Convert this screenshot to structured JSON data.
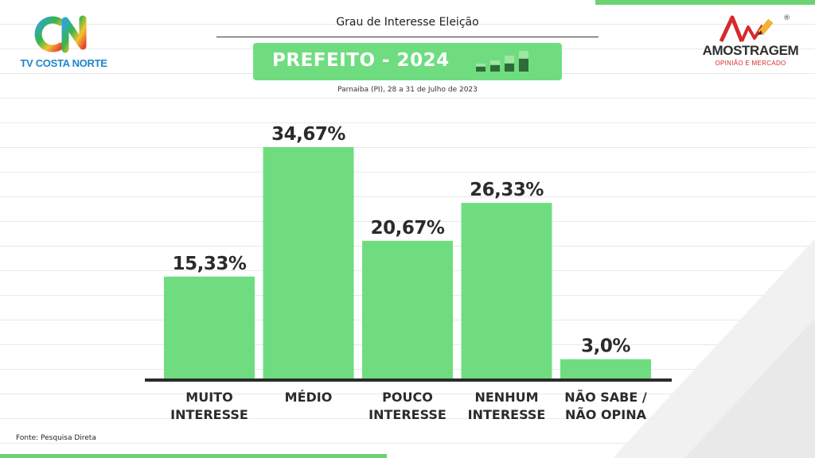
{
  "header": {
    "title": "Grau de Interesse Eleição",
    "banner": "PREFEITO - 2024",
    "subtitle": "Parnaiba (PI), 28 a 31 de Julho de 2023"
  },
  "logos": {
    "left_brand": "TV COSTA NORTE",
    "right_name": "AMOSTRAGEM",
    "right_tagline": "OPINIÃO E MERCADO",
    "right_mark": "®"
  },
  "footer": {
    "source": "Fonte: Pesquisa Direta"
  },
  "colors": {
    "bar": "#6fdd7f",
    "accent_green": "#6bd36f",
    "axis": "#2b2b2b",
    "label": "#2b2b2b"
  },
  "chart_data": {
    "type": "bar",
    "title": "Grau de Interesse Eleição",
    "categories": [
      [
        "MUITO",
        "INTERESSE"
      ],
      [
        "MÉDIO"
      ],
      [
        "POUCO",
        "INTERESSE"
      ],
      [
        "NENHUM",
        "INTERESSE"
      ],
      [
        "NÃO SABE /",
        "NÃO OPINA"
      ]
    ],
    "values": [
      15.33,
      34.67,
      20.67,
      26.33,
      3.0
    ],
    "value_labels": [
      "15,33%",
      "34,67%",
      "20,67%",
      "26,33%",
      "3,0%"
    ],
    "ylim": [
      0,
      40
    ],
    "grid": false
  }
}
